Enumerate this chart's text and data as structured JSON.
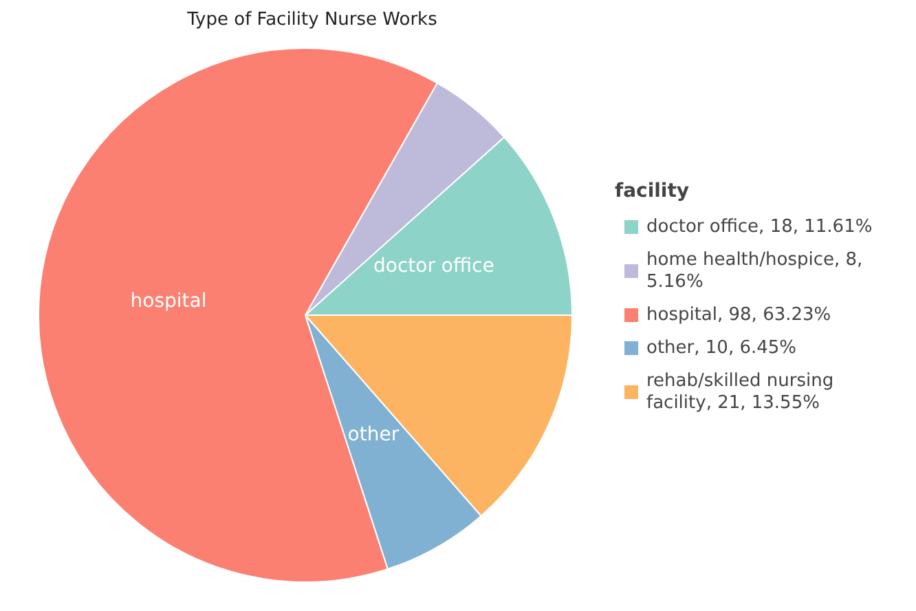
{
  "chart_data": {
    "type": "pie",
    "title": "Type of Facility Nurse Works",
    "legend_title": "facility",
    "legend": "right",
    "categories": [
      "doctor office",
      "home health/hospice",
      "hospital",
      "other",
      "rehab/skilled nursing facility"
    ],
    "values": [
      18,
      8,
      98,
      10,
      21
    ],
    "value_labels": [
      ", 18, 11.61%",
      ", 8, 5.16%",
      ", 98, 63.23%",
      ", 10, 6.45%",
      ", 21, 13.55%"
    ],
    "colors": [
      "#8dd3c7",
      "#bebada",
      "#fb8072",
      "#80b1d3",
      "#fdb462"
    ],
    "annotations": [
      {
        "text": "doctor office",
        "x": "doctor office"
      },
      {
        "text": "hospital",
        "x": "hospital"
      },
      {
        "text": "other",
        "x": "other"
      }
    ]
  }
}
